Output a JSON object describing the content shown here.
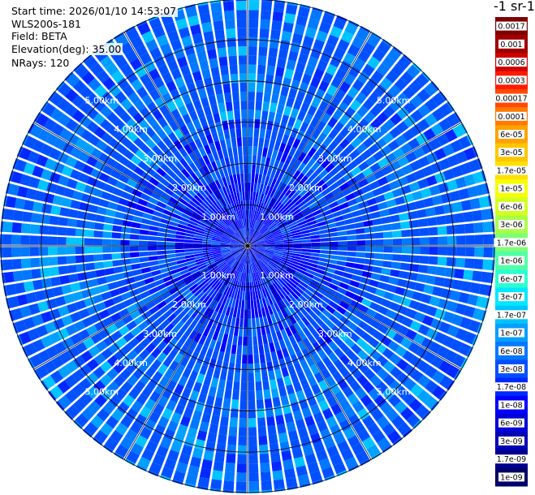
{
  "info": {
    "start_time": "Start time: 2026/01/10 14:53:07",
    "instrument": "WLS200s-181",
    "field": "Field: BETA",
    "elevation": "Elevation(deg): 35.00",
    "nrays": "NRays: 120"
  },
  "colorbar": {
    "title": "-1 sr-1",
    "labels": [
      "0.0017",
      "0.001",
      "0.0006",
      "0.0003",
      "0.00017",
      "0.0001",
      "6e-05",
      "3e-05",
      "1.7e-05",
      "1e-05",
      "6e-06",
      "3e-06",
      "1.7e-06",
      "1e-06",
      "6e-07",
      "3e-07",
      "1.7e-07",
      "1e-07",
      "6e-08",
      "3e-08",
      "1.7e-08",
      "1e-08",
      "6e-09",
      "3e-09",
      "1.7e-09",
      "1e-09"
    ],
    "colors": [
      "#7f0000",
      "#a00000",
      "#d00000",
      "#ff1a00",
      "#ff4a00",
      "#ff7a00",
      "#ffa200",
      "#ffc600",
      "#ffe000",
      "#f6ff00",
      "#d4ff1f",
      "#a8ff48",
      "#7dff7a",
      "#52ffa6",
      "#2cffd0",
      "#00e8ff",
      "#00c4ff",
      "#00a0ff",
      "#0078ff",
      "#0050ff",
      "#0028ff",
      "#0000ff",
      "#0000d8",
      "#0000b4",
      "#00008f",
      "#000068"
    ]
  },
  "chart_data": {
    "type": "heatmap",
    "projection": "polar PPI",
    "field": "BETA",
    "nrays": 120,
    "range_unit": "km",
    "range_rings": [
      {
        "range_km": 1.0,
        "label": "1.00km"
      },
      {
        "range_km": 2.0,
        "label": "2.00km"
      },
      {
        "range_km": 3.0,
        "label": "3.00km"
      },
      {
        "range_km": 4.0,
        "label": "4.00km"
      },
      {
        "range_km": 5.0,
        "label": "5.00km"
      }
    ],
    "max_range_km": 6.0,
    "dominant_colors": [
      "#0050ff",
      "#0078ff",
      "#00a0ff",
      "#00c4ff",
      "#0028ff",
      "#0000ff"
    ]
  }
}
